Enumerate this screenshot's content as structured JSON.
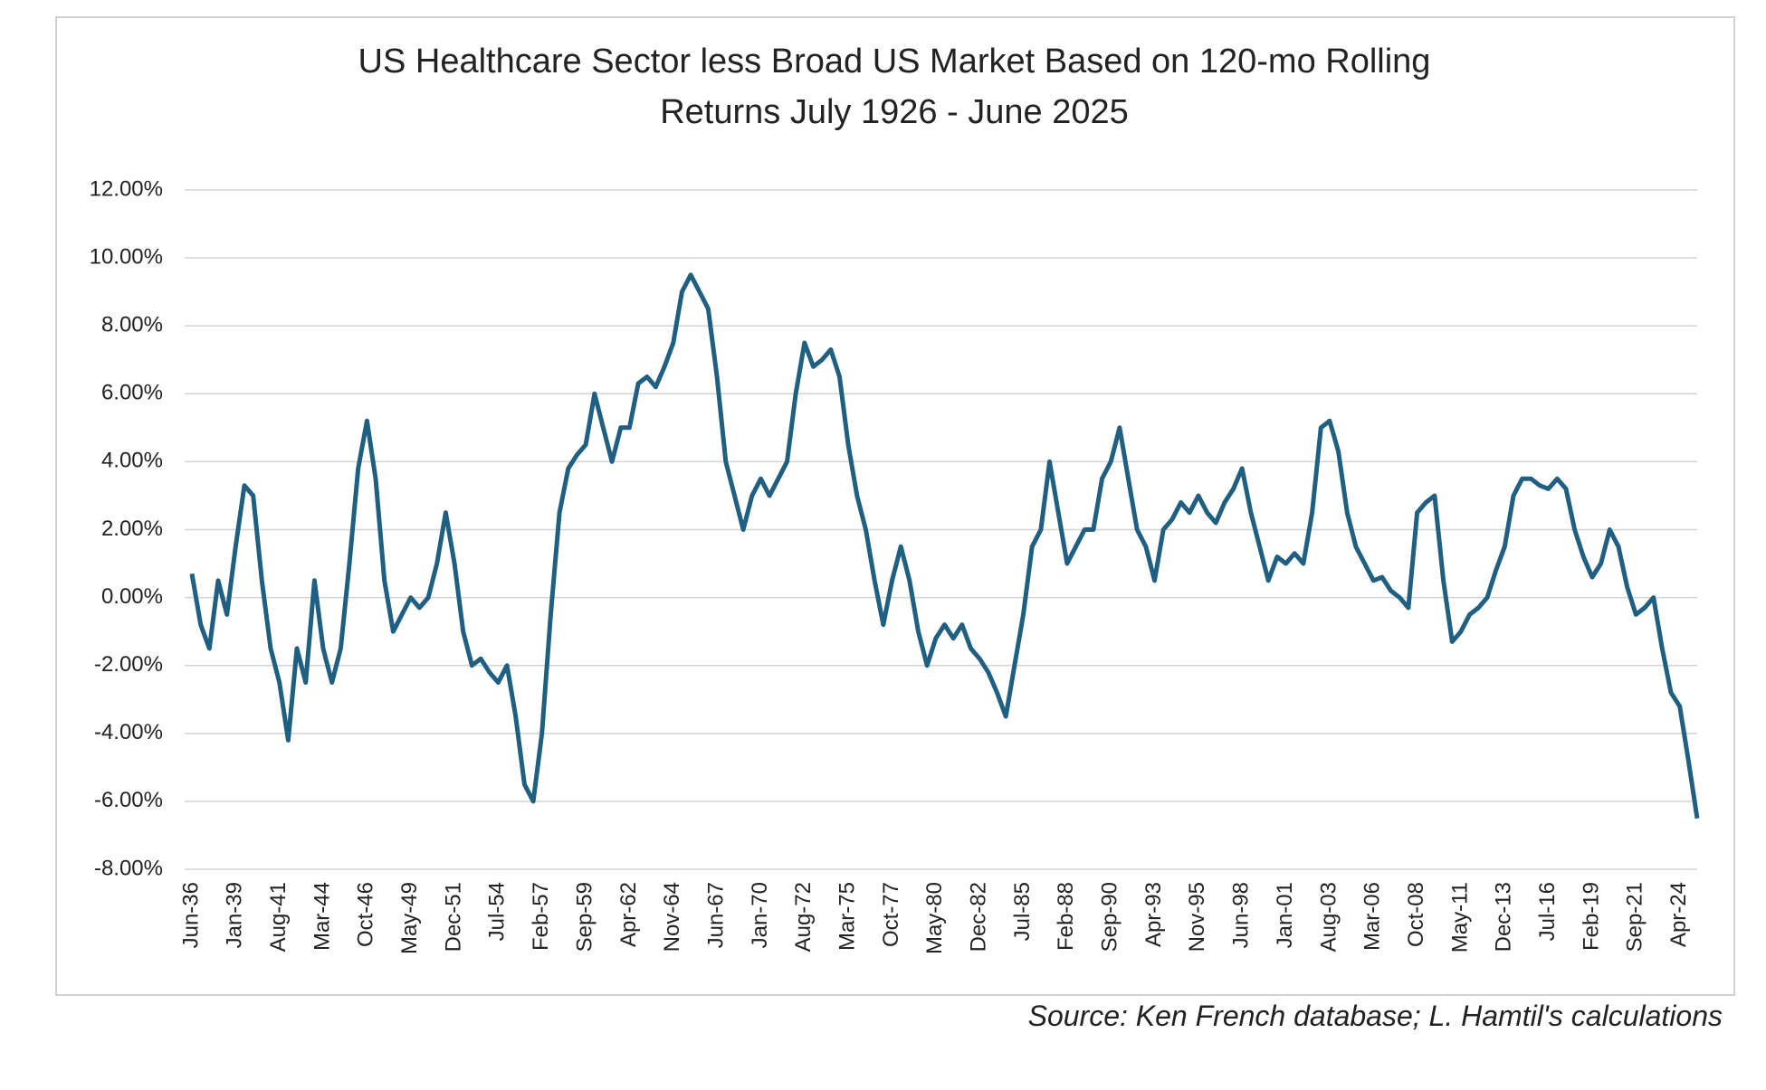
{
  "chart_data": {
    "type": "line",
    "title": "US Healthcare Sector less Broad US Market Based on 120-mo Rolling",
    "subtitle": "Returns July 1926 - June 2025",
    "source": "Source:  Ken French database; L. Hamtil's calculations",
    "categories": [
      "Jun-36",
      null,
      null,
      null,
      null,
      "Jan-39",
      null,
      null,
      null,
      null,
      "Aug-41",
      null,
      null,
      null,
      null,
      "Mar-44",
      null,
      null,
      null,
      null,
      "Oct-46",
      null,
      null,
      null,
      null,
      "May-49",
      null,
      null,
      null,
      null,
      "Dec-51",
      null,
      null,
      null,
      null,
      "Jul-54",
      null,
      null,
      null,
      null,
      "Feb-57",
      null,
      null,
      null,
      null,
      "Sep-59",
      null,
      null,
      null,
      null,
      "Apr-62",
      null,
      null,
      null,
      null,
      "Nov-64",
      null,
      null,
      null,
      null,
      "Jun-67",
      null,
      null,
      null,
      null,
      "Jan-70",
      null,
      null,
      null,
      null,
      "Aug-72",
      null,
      null,
      null,
      null,
      "Mar-75",
      null,
      null,
      null,
      null,
      "Oct-77",
      null,
      null,
      null,
      null,
      "May-80",
      null,
      null,
      null,
      null,
      "Dec-82",
      null,
      null,
      null,
      null,
      "Jul-85",
      null,
      null,
      null,
      null,
      "Feb-88",
      null,
      null,
      null,
      null,
      "Sep-90",
      null,
      null,
      null,
      null,
      "Apr-93",
      null,
      null,
      null,
      null,
      "Nov-95",
      null,
      null,
      null,
      null,
      "Jun-98",
      null,
      null,
      null,
      null,
      "Jan-01",
      null,
      null,
      null,
      null,
      "Aug-03",
      null,
      null,
      null,
      null,
      "Mar-06",
      null,
      null,
      null,
      null,
      "Oct-08",
      null,
      null,
      null,
      null,
      "May-11",
      null,
      null,
      null,
      null,
      "Dec-13",
      null,
      null,
      null,
      null,
      "Jul-16",
      null,
      null,
      null,
      null,
      "Feb-19",
      null,
      null,
      null,
      null,
      "Sep-21",
      null,
      null,
      null,
      null,
      "Apr-24",
      null,
      null
    ],
    "series": [
      {
        "name": "US Healthcare less Broad Market",
        "color": "#1f5f82",
        "values": [
          0.7,
          -0.8,
          -1.5,
          0.5,
          -0.5,
          1.5,
          3.3,
          3.0,
          0.5,
          -1.5,
          -2.5,
          -4.2,
          -1.5,
          -2.5,
          0.5,
          -1.5,
          -2.5,
          -1.5,
          1.0,
          3.8,
          5.2,
          3.5,
          0.5,
          -1.0,
          -0.5,
          0.0,
          -0.3,
          0.0,
          1.0,
          2.5,
          1.0,
          -1.0,
          -2.0,
          -1.8,
          -2.2,
          -2.5,
          -2.0,
          -3.5,
          -5.5,
          -6.0,
          -4.0,
          -0.5,
          2.5,
          3.8,
          4.2,
          4.5,
          6.0,
          5.0,
          4.0,
          5.0,
          5.0,
          6.3,
          6.5,
          6.2,
          6.8,
          7.5,
          9.0,
          9.5,
          9.0,
          8.5,
          6.5,
          4.0,
          3.0,
          2.0,
          3.0,
          3.5,
          3.0,
          3.5,
          4.0,
          6.0,
          7.5,
          6.8,
          7.0,
          7.3,
          6.5,
          4.5,
          3.0,
          2.0,
          0.5,
          -0.8,
          0.5,
          1.5,
          0.5,
          -1.0,
          -2.0,
          -1.2,
          -0.8,
          -1.2,
          -0.8,
          -1.5,
          -1.8,
          -2.2,
          -2.8,
          -3.5,
          -2.0,
          -0.5,
          1.5,
          2.0,
          4.0,
          2.5,
          1.0,
          1.5,
          2.0,
          2.0,
          3.5,
          4.0,
          5.0,
          3.5,
          2.0,
          1.5,
          0.5,
          2.0,
          2.3,
          2.8,
          2.5,
          3.0,
          2.5,
          2.2,
          2.8,
          3.2,
          3.8,
          2.5,
          1.5,
          0.5,
          1.2,
          1.0,
          1.3,
          1.0,
          2.5,
          5.0,
          5.2,
          4.3,
          2.5,
          1.5,
          1.0,
          0.5,
          0.6,
          0.2,
          0.0,
          -0.3,
          2.5,
          2.8,
          3.0,
          0.5,
          -1.3,
          -1.0,
          -0.5,
          -0.3,
          0.0,
          0.8,
          1.5,
          3.0,
          3.5,
          3.5,
          3.3,
          3.2,
          3.5,
          3.2,
          2.0,
          1.2,
          0.6,
          1.0,
          2.0,
          1.5,
          0.3,
          -0.5,
          -0.3,
          0.0,
          -1.5,
          -2.8,
          -3.2,
          -4.8,
          -6.5
        ]
      }
    ],
    "ylim": [
      -8,
      12
    ],
    "yticks": [
      {
        "value": -8,
        "label": "-8.00%"
      },
      {
        "value": -6,
        "label": "-6.00%"
      },
      {
        "value": -4,
        "label": "-4.00%"
      },
      {
        "value": -2,
        "label": "-2.00%"
      },
      {
        "value": 0,
        "label": "0.00%"
      },
      {
        "value": 2,
        "label": "2.00%"
      },
      {
        "value": 4,
        "label": "4.00%"
      },
      {
        "value": 6,
        "label": "6.00%"
      },
      {
        "value": 8,
        "label": "8.00%"
      },
      {
        "value": 10,
        "label": "10.00%"
      },
      {
        "value": 12,
        "label": "12.00%"
      }
    ],
    "grid": true
  }
}
